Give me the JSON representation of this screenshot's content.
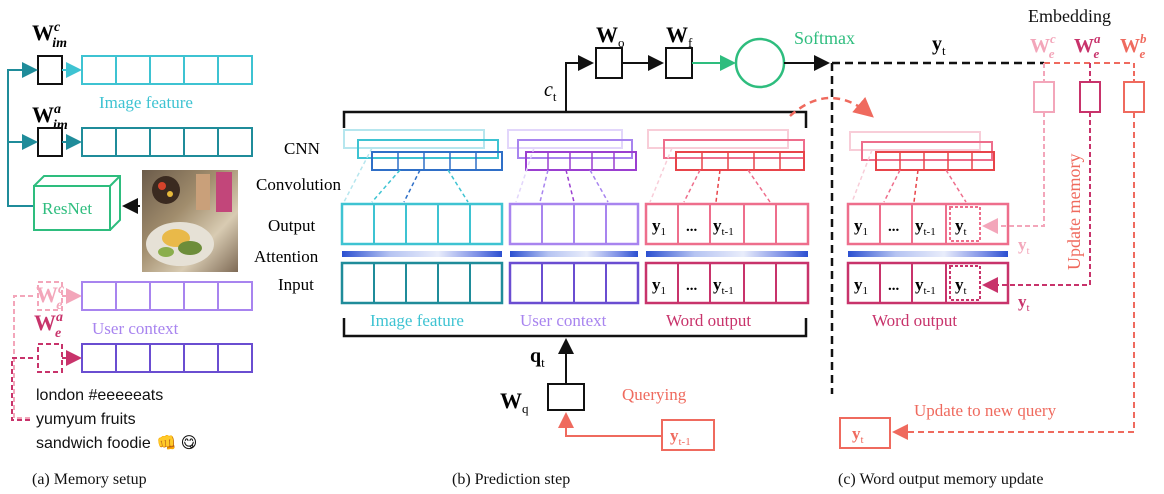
{
  "colors": {
    "cyan": "#3ec3d2",
    "teal": "#1f8c9a",
    "blue": "#2f6fc7",
    "purple_light": "#a884ef",
    "purple": "#6a4dd1",
    "violet": "#9b3fd0",
    "pink_light": "#f3a6ba",
    "pink": "#ee6e8c",
    "red": "#e8444a",
    "crimson": "#c8336b",
    "salmon": "#ef6a5e",
    "green": "#2ebd7e",
    "black": "#111111"
  },
  "memory_setup": {
    "w_im_c": "W",
    "w_im_c_sup": "c",
    "w_im_c_sub": "im",
    "w_im_a": "W",
    "w_im_a_sup": "a",
    "w_im_a_sub": "im",
    "image_feature_label": "Image feature",
    "resnet_label": "ResNet",
    "w_e_c": "W",
    "w_e_c_sup": "c",
    "w_e_c_sub": "e",
    "w_e_a": "W",
    "w_e_a_sup": "a",
    "w_e_a_sub": "e",
    "user_context_label": "User context",
    "hashtag_line1": "london #eeeeeats",
    "hashtag_line2": "yumyum fruits",
    "hashtag_line3": "sandwich foodie",
    "emoji1": "👊",
    "emoji2": "😋",
    "caption": "(a) Memory setup"
  },
  "prediction": {
    "w_o": "W",
    "w_o_sub": "o",
    "w_f": "W",
    "w_f_sub": "f",
    "softmax": "Softmax",
    "c_t": "c",
    "c_t_sub": "t",
    "y_t": "y",
    "y_t_sub": "t",
    "cnn": "CNN",
    "convolution": "Convolution",
    "output": "Output",
    "attention": "Attention",
    "input": "Input",
    "y1": "y",
    "y1_sub": "1",
    "dots": "...",
    "yt1": "y",
    "yt1_sub": "t-1",
    "image_feature": "Image feature",
    "user_context": "User context",
    "word_output": "Word output",
    "q_t": "q",
    "q_t_sub": "t",
    "w_q": "W",
    "w_q_sub": "q",
    "querying": "Querying",
    "query_y": "y",
    "query_y_sub": "t-1",
    "caption": "(b) Prediction step"
  },
  "update": {
    "embedding": "Embedding",
    "we_c": "W",
    "we_c_sup": "c",
    "we_c_sub": "e",
    "we_a": "W",
    "we_a_sup": "a",
    "we_a_sub": "e",
    "we_b": "W",
    "we_b_sup": "b",
    "we_b_sub": "e",
    "update_memory": "Update memory",
    "y1": "y",
    "y1_sub": "1",
    "dots": "...",
    "yt1": "y",
    "yt1_sub": "t-1",
    "yt": "y",
    "yt_sub": "t",
    "word_output": "Word output",
    "update_query": "Update to new query",
    "new_y": "y",
    "new_y_sub": "t",
    "caption": "(c) Word output memory update"
  }
}
